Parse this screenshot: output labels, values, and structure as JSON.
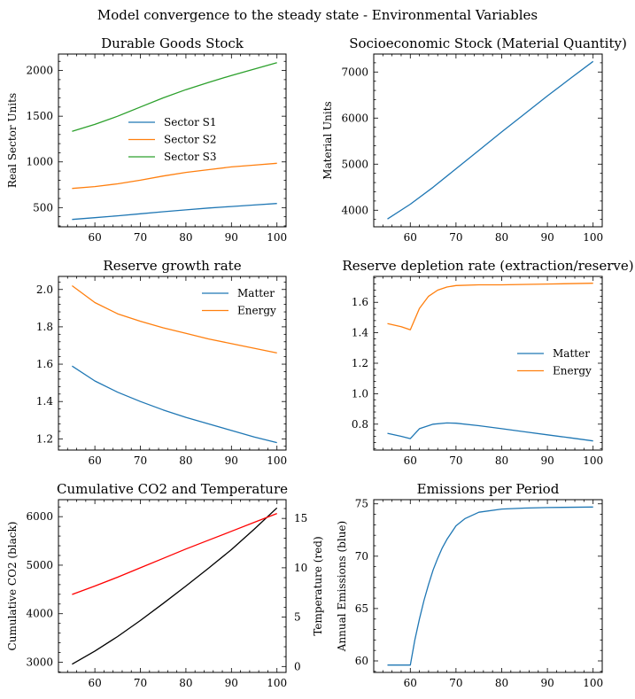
{
  "suptitle": "Model convergence to the steady state - Environmental Variables",
  "chart_data": [
    {
      "id": "durable",
      "type": "line",
      "title": "Durable Goods Stock",
      "xlabel": "",
      "ylabel": "Real Sector Units",
      "xlim": [
        52,
        102
      ],
      "ylim": [
        290,
        2180
      ],
      "xticks": [
        60,
        70,
        80,
        90,
        100
      ],
      "yticks": [
        500,
        1000,
        1500,
        2000
      ],
      "legend": "center",
      "series": [
        {
          "name": "Sector S1",
          "color": "#1f77b4",
          "x": [
            55,
            60,
            65,
            70,
            75,
            80,
            85,
            90,
            95,
            100
          ],
          "y": [
            370,
            390,
            410,
            432,
            455,
            475,
            495,
            512,
            528,
            545
          ]
        },
        {
          "name": "Sector S2",
          "color": "#ff7f0e",
          "x": [
            55,
            60,
            65,
            70,
            75,
            80,
            85,
            90,
            95,
            100
          ],
          "y": [
            710,
            730,
            760,
            800,
            845,
            885,
            915,
            945,
            965,
            985
          ]
        },
        {
          "name": "Sector S3",
          "color": "#2ca02c",
          "x": [
            55,
            60,
            65,
            70,
            75,
            80,
            85,
            90,
            95,
            100
          ],
          "y": [
            1335,
            1410,
            1500,
            1600,
            1700,
            1790,
            1870,
            1945,
            2015,
            2085
          ]
        }
      ]
    },
    {
      "id": "socio",
      "type": "line",
      "title": "Socioeconomic Stock (Material Quantity)",
      "xlabel": "",
      "ylabel": "Material Units",
      "xlim": [
        52,
        102
      ],
      "ylim": [
        3640,
        7390
      ],
      "xticks": [
        60,
        70,
        80,
        90,
        100
      ],
      "yticks": [
        4000,
        5000,
        6000,
        7000
      ],
      "series": [
        {
          "color": "#1f77b4",
          "x": [
            55,
            60,
            65,
            70,
            75,
            80,
            85,
            90,
            95,
            100
          ],
          "y": [
            3810,
            4130,
            4500,
            4900,
            5300,
            5700,
            6090,
            6480,
            6860,
            7230
          ]
        }
      ]
    },
    {
      "id": "growth",
      "type": "line",
      "title": "Reserve growth rate",
      "xlabel": "",
      "ylabel": "",
      "xlim": [
        52,
        102
      ],
      "ylim": [
        1.14,
        2.07
      ],
      "xticks": [
        60,
        70,
        80,
        90,
        100
      ],
      "yticks": [
        1.2,
        1.4,
        1.6,
        1.8,
        2.0
      ],
      "legend": "top-right",
      "series": [
        {
          "name": "Matter",
          "color": "#1f77b4",
          "x": [
            55,
            60,
            65,
            70,
            75,
            80,
            85,
            90,
            95,
            100
          ],
          "y": [
            1.59,
            1.51,
            1.45,
            1.4,
            1.355,
            1.315,
            1.28,
            1.245,
            1.21,
            1.18
          ]
        },
        {
          "name": "Energy",
          "color": "#ff7f0e",
          "x": [
            55,
            60,
            65,
            70,
            75,
            80,
            85,
            90,
            95,
            100
          ],
          "y": [
            2.02,
            1.93,
            1.87,
            1.83,
            1.795,
            1.765,
            1.735,
            1.71,
            1.685,
            1.66
          ]
        }
      ]
    },
    {
      "id": "depletion",
      "type": "line",
      "title": "Reserve depletion rate (extraction/reserve)",
      "xlabel": "",
      "ylabel": "",
      "xlim": [
        52,
        102
      ],
      "ylim": [
        0.63,
        1.77
      ],
      "xticks": [
        60,
        70,
        80,
        90,
        100
      ],
      "yticks": [
        0.8,
        1.0,
        1.2,
        1.4,
        1.6
      ],
      "legend": "center-right",
      "series": [
        {
          "name": "Matter",
          "color": "#1f77b4",
          "x": [
            55,
            58,
            60,
            62,
            65,
            68,
            70,
            75,
            80,
            85,
            90,
            95,
            100
          ],
          "y": [
            0.74,
            0.72,
            0.705,
            0.77,
            0.8,
            0.808,
            0.806,
            0.79,
            0.77,
            0.75,
            0.73,
            0.71,
            0.69
          ]
        },
        {
          "name": "Energy",
          "color": "#ff7f0e",
          "x": [
            55,
            58,
            60,
            62,
            64,
            66,
            68,
            70,
            75,
            80,
            90,
            100
          ],
          "y": [
            1.46,
            1.44,
            1.42,
            1.56,
            1.64,
            1.68,
            1.7,
            1.71,
            1.715,
            1.715,
            1.72,
            1.725
          ]
        }
      ]
    },
    {
      "id": "co2",
      "type": "line",
      "title": "Cumulative CO2 and Temperature",
      "xlabel": "",
      "ylabel": "Cumulative CO2 (black)",
      "ylabel2": "Temperature (red)",
      "xlim": [
        52,
        102
      ],
      "ylim": [
        2790,
        6350
      ],
      "ylim2": [
        -0.6,
        16.9
      ],
      "xticks": [
        60,
        70,
        80,
        90,
        100
      ],
      "yticks": [
        3000,
        4000,
        5000,
        6000
      ],
      "yticks2": [
        0,
        5,
        10,
        15
      ],
      "series": [
        {
          "axis": "left",
          "color": "#000000",
          "x": [
            55,
            60,
            65,
            70,
            75,
            80,
            85,
            90,
            95,
            100
          ],
          "y": [
            2960,
            3230,
            3530,
            3860,
            4210,
            4570,
            4940,
            5320,
            5740,
            6180
          ]
        },
        {
          "axis": "right",
          "color": "#ff0000",
          "x": [
            55,
            60,
            65,
            70,
            75,
            80,
            85,
            90,
            95,
            100
          ],
          "y": [
            7.3,
            8.15,
            9.05,
            10.0,
            10.95,
            11.9,
            12.8,
            13.7,
            14.6,
            15.5
          ]
        }
      ]
    },
    {
      "id": "emissions",
      "type": "line",
      "title": "Emissions per Period",
      "xlabel": "",
      "ylabel": "Annual Emissions (blue)",
      "xlim": [
        52,
        102
      ],
      "ylim": [
        58.9,
        75.4
      ],
      "xticks": [
        60,
        70,
        80,
        90,
        100
      ],
      "yticks": [
        60,
        65,
        70,
        75
      ],
      "series": [
        {
          "color": "#1f77b4",
          "x": [
            55,
            58,
            60,
            61,
            62,
            63,
            64,
            65,
            66,
            67,
            68,
            70,
            72,
            75,
            80,
            85,
            90,
            100
          ],
          "y": [
            59.6,
            59.6,
            59.6,
            62.0,
            64.0,
            65.8,
            67.3,
            68.7,
            69.8,
            70.8,
            71.6,
            72.9,
            73.6,
            74.2,
            74.5,
            74.6,
            74.65,
            74.7
          ]
        }
      ]
    }
  ]
}
